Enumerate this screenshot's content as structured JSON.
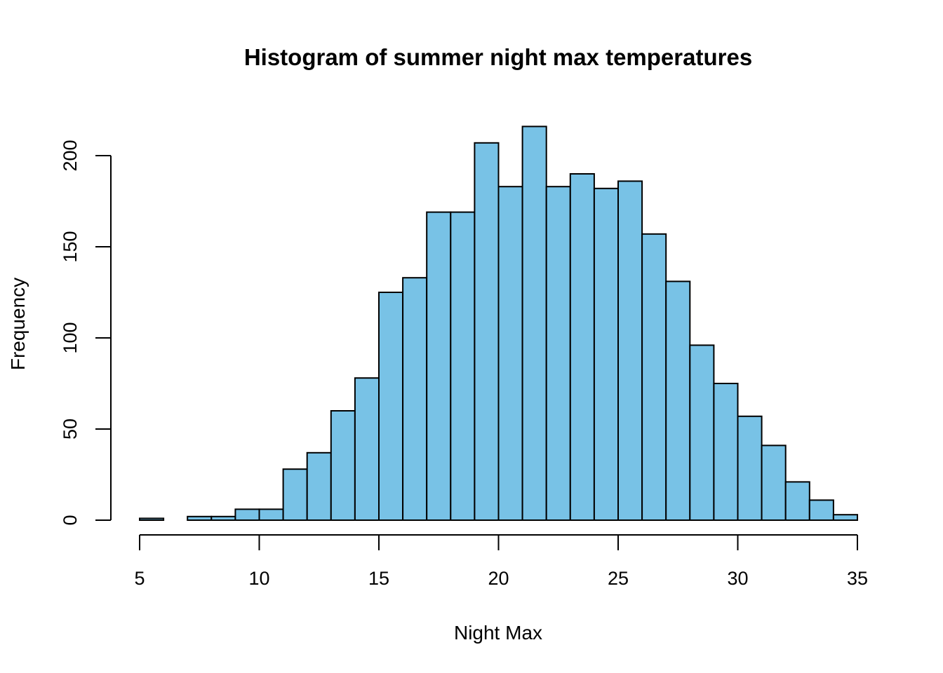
{
  "chart_data": {
    "type": "bar",
    "title": "Histogram of summer night max temperatures",
    "xlabel": "Night Max",
    "ylabel": "Frequency",
    "bin_width": 1,
    "bin_edges": [
      5,
      6,
      7,
      8,
      9,
      10,
      11,
      12,
      13,
      14,
      15,
      16,
      17,
      18,
      19,
      20,
      21,
      22,
      23,
      24,
      25,
      26,
      27,
      28,
      29,
      30,
      31,
      32,
      33,
      34,
      35
    ],
    "values": [
      1,
      0,
      2,
      2,
      6,
      6,
      28,
      37,
      60,
      78,
      125,
      133,
      169,
      169,
      207,
      183,
      216,
      183,
      190,
      182,
      186,
      157,
      131,
      96,
      75,
      57,
      41,
      21,
      11,
      3
    ],
    "x_ticks": [
      "5",
      "10",
      "15",
      "20",
      "25",
      "30",
      "35"
    ],
    "y_ticks": [
      "0",
      "50",
      "100",
      "150",
      "200"
    ],
    "xlim": [
      5,
      35
    ],
    "ylim": [
      0,
      200
    ],
    "bar_color": "#78C2E6",
    "grid": false,
    "legend": "none"
  }
}
